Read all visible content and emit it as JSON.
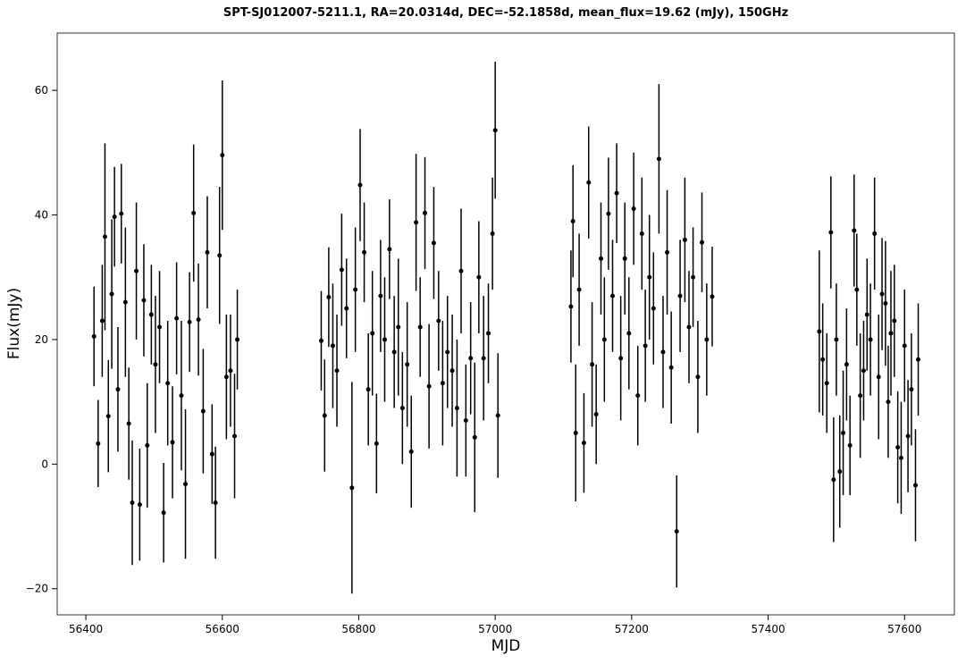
{
  "chart_data": {
    "type": "errorbar",
    "title": "SPT-SJ012007-5211.1, RA=20.0314d, DEC=-52.1858d, mean_flux=19.62 (mJy), 150GHz",
    "xlabel": "MJD",
    "ylabel": "Flux(mJy)",
    "color": "#000000",
    "x": [
      56412,
      56418,
      56424,
      56428,
      56433,
      56438,
      56442,
      56447,
      56452,
      56458,
      56463,
      56468,
      56474,
      56479,
      56485,
      56490,
      56496,
      56502,
      56508,
      56514,
      56520,
      56527,
      56533,
      56540,
      56546,
      56552,
      56558,
      56565,
      56572,
      56578,
      56585,
      56590,
      56596,
      56600,
      56606,
      56612,
      56618,
      56622,
      56745,
      56750,
      56756,
      56762,
      56768,
      56775,
      56782,
      56790,
      56795,
      56802,
      56808,
      56814,
      56820,
      56826,
      56832,
      56838,
      56845,
      56852,
      56858,
      56864,
      56871,
      56877,
      56884,
      56890,
      56897,
      56903,
      56910,
      56917,
      56923,
      56930,
      56937,
      56944,
      56950,
      56957,
      56964,
      56970,
      56976,
      56983,
      56990,
      56996,
      57000,
      57004,
      57111,
      57114,
      57118,
      57123,
      57130,
      57137,
      57142,
      57148,
      57155,
      57160,
      57166,
      57172,
      57178,
      57184,
      57190,
      57196,
      57203,
      57209,
      57215,
      57220,
      57226,
      57232,
      57240,
      57246,
      57252,
      57258,
      57266,
      57271,
      57278,
      57284,
      57290,
      57297,
      57303,
      57310,
      57318,
      57475,
      57480,
      57486,
      57492,
      57496,
      57500,
      57505,
      57510,
      57515,
      57520,
      57526,
      57530,
      57535,
      57540,
      57545,
      57550,
      57556,
      57562,
      57567,
      57572,
      57576,
      57580,
      57585,
      57590,
      57595,
      57600,
      57605,
      57610,
      57616,
      57620
    ],
    "values": [
      20.5,
      3.3,
      23,
      36.5,
      7.7,
      27.3,
      39.7,
      12,
      40.2,
      26,
      6.5,
      -6.2,
      31,
      -6.5,
      26.3,
      3,
      24,
      16,
      22,
      -7.8,
      13,
      3.5,
      23.4,
      11,
      -3.2,
      22.8,
      40.3,
      23.2,
      8.5,
      34,
      1.6,
      -6.2,
      33.5,
      49.6,
      14,
      15,
      4.5,
      20,
      19.8,
      7.8,
      26.8,
      19,
      15,
      31.2,
      25,
      -3.8,
      28,
      44.8,
      34,
      12,
      21,
      3.3,
      27,
      20,
      34.5,
      18,
      22,
      9,
      16,
      2,
      38.8,
      22,
      40.3,
      12.5,
      35.5,
      23,
      13,
      18,
      15,
      9,
      31,
      7,
      17,
      4.3,
      30,
      17,
      21,
      37,
      53.6,
      7.8,
      25.3,
      39,
      5,
      28,
      3.4,
      45.2,
      16,
      8,
      33,
      20,
      40.2,
      27,
      43.5,
      17,
      33,
      21,
      41,
      11,
      37,
      19,
      30,
      25,
      49,
      18,
      34,
      15.5,
      -10.8,
      27,
      36,
      22,
      30,
      14,
      35.6,
      20,
      26.9,
      21.3,
      16.8,
      13,
      37.2,
      -2.5,
      20,
      -1.2,
      5,
      16,
      3,
      37.5,
      28,
      11,
      15,
      24,
      20,
      37,
      14,
      27.3,
      25.8,
      10,
      21,
      23,
      2.7,
      1,
      19,
      4.5,
      12,
      -3.4,
      16.8
    ],
    "errors": [
      8,
      7,
      9,
      15,
      9,
      12,
      8,
      10,
      8,
      12,
      9,
      10,
      11,
      9,
      9,
      10,
      8,
      11,
      9,
      8,
      10,
      9,
      9,
      12,
      12,
      8,
      11,
      9,
      10,
      9,
      8,
      9,
      11,
      12,
      10,
      9,
      10,
      8,
      8,
      9,
      8,
      10,
      9,
      9,
      8,
      17,
      10,
      9,
      8,
      9,
      10,
      8,
      9,
      10,
      8,
      9,
      11,
      9,
      10,
      9,
      11,
      8,
      9,
      10,
      9,
      8,
      10,
      9,
      9,
      11,
      10,
      9,
      9,
      12,
      9,
      10,
      8,
      9,
      11,
      10,
      9,
      9,
      11,
      9,
      8,
      9,
      10,
      8,
      9,
      10,
      9,
      9,
      8,
      10,
      9,
      9,
      9,
      8,
      9,
      9,
      10,
      9,
      12,
      9,
      10,
      9,
      9,
      9,
      10,
      9,
      8,
      9,
      8,
      9,
      8,
      13,
      9,
      8,
      9,
      10,
      9,
      9,
      10,
      9,
      8,
      9,
      9,
      10,
      8,
      9,
      9,
      9,
      10,
      9,
      10,
      9,
      10,
      9,
      9,
      9,
      9,
      9,
      9,
      9,
      9
    ],
    "xlim": [
      56358,
      57673
    ],
    "ylim": [
      -24.2,
      69.2
    ],
    "xticks": [
      56400,
      56600,
      56800,
      57000,
      57200,
      57400,
      57600
    ],
    "yticks": [
      {
        "value": -20,
        "label": "−20"
      },
      0,
      20,
      40,
      60
    ]
  }
}
